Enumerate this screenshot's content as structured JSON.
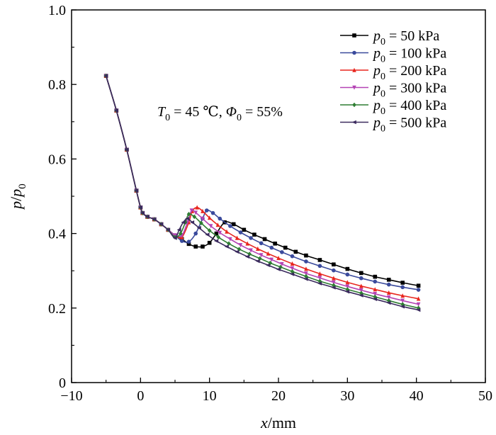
{
  "chart_data": {
    "type": "line",
    "xlabel_var": "x",
    "xlabel_unit": "/mm",
    "ylabel_num": "p",
    "ylabel_den": "p",
    "ylabel_den_sub": "0",
    "xlim": [
      -10,
      50
    ],
    "ylim": [
      0,
      1.0
    ],
    "x_ticks": [
      -10,
      0,
      10,
      20,
      30,
      40,
      50
    ],
    "x_tick_labels": [
      "−10",
      "0",
      "10",
      "20",
      "30",
      "40",
      "50"
    ],
    "y_ticks": [
      0,
      0.2,
      0.4,
      0.6,
      0.8,
      1.0
    ],
    "y_tick_labels": [
      "0",
      "0.2",
      "0.4",
      "0.6",
      "0.8",
      "1.0"
    ],
    "grid": false,
    "legend_position": "top-right",
    "annotation": {
      "T": "T",
      "T_sub": "0",
      "T_value": " = 45 ℃, ",
      "Phi": "Φ",
      "Phi_sub": "0",
      "Phi_value": " = 55%"
    },
    "series": [
      {
        "name": "p0 = 50 kPa",
        "legend_var": "p",
        "legend_sub": "0",
        "legend_value": " = 50 kPa",
        "color": "#000000",
        "marker": "square",
        "x": [
          -5,
          -3.5,
          -2,
          -0.6,
          0,
          0.3,
          1,
          2,
          3,
          4,
          5,
          6,
          7,
          8,
          9,
          10,
          11,
          12.2,
          13.5,
          15,
          16.5,
          18,
          19.5,
          21,
          22.5,
          24,
          26,
          28,
          30,
          32,
          34,
          36,
          38,
          40.3
        ],
        "y": [
          0.823,
          0.73,
          0.625,
          0.515,
          0.47,
          0.455,
          0.445,
          0.438,
          0.425,
          0.41,
          0.395,
          0.385,
          0.372,
          0.365,
          0.365,
          0.375,
          0.4,
          0.43,
          0.425,
          0.41,
          0.397,
          0.385,
          0.373,
          0.362,
          0.351,
          0.341,
          0.329,
          0.317,
          0.305,
          0.294,
          0.284,
          0.276,
          0.268,
          0.26
        ]
      },
      {
        "name": "p0 = 100 kPa",
        "legend_var": "p",
        "legend_sub": "0",
        "legend_value": " = 100 kPa",
        "color": "#3a4a9c",
        "marker": "circle",
        "x": [
          -5,
          -3.5,
          -2,
          -0.6,
          0,
          0.3,
          1,
          2,
          3,
          4,
          5,
          6,
          7,
          8,
          9,
          9.6,
          10.5,
          11.5,
          13,
          14.5,
          16,
          17.5,
          19,
          20.5,
          22,
          24,
          26,
          28,
          30,
          32,
          34,
          36,
          38,
          40.3
        ],
        "y": [
          0.823,
          0.73,
          0.625,
          0.515,
          0.47,
          0.455,
          0.445,
          0.438,
          0.425,
          0.41,
          0.395,
          0.38,
          0.378,
          0.4,
          0.44,
          0.462,
          0.455,
          0.44,
          0.42,
          0.403,
          0.388,
          0.374,
          0.362,
          0.35,
          0.339,
          0.325,
          0.313,
          0.301,
          0.29,
          0.28,
          0.271,
          0.263,
          0.256,
          0.249
        ]
      },
      {
        "name": "p0 = 200 kPa",
        "legend_var": "p",
        "legend_sub": "0",
        "legend_value": " = 200 kPa",
        "color": "#e8261e",
        "marker": "triangle-up",
        "x": [
          -5,
          -3.5,
          -2,
          -0.6,
          0,
          0.3,
          1,
          2,
          3,
          4,
          5,
          6,
          7,
          7.5,
          8.2,
          9,
          10,
          11.2,
          12.5,
          14,
          15.5,
          17,
          18.5,
          20,
          22,
          24,
          26,
          28,
          30,
          32,
          34,
          36,
          38,
          40.3
        ],
        "y": [
          0.823,
          0.73,
          0.625,
          0.515,
          0.47,
          0.455,
          0.445,
          0.438,
          0.425,
          0.41,
          0.395,
          0.39,
          0.43,
          0.46,
          0.47,
          0.46,
          0.442,
          0.423,
          0.405,
          0.388,
          0.373,
          0.359,
          0.346,
          0.334,
          0.319,
          0.305,
          0.292,
          0.28,
          0.269,
          0.259,
          0.25,
          0.241,
          0.233,
          0.225
        ]
      },
      {
        "name": "p0 = 300 kPa",
        "legend_var": "p",
        "legend_sub": "0",
        "legend_value": " = 300 kPa",
        "color": "#b443b4",
        "marker": "triangle-down",
        "x": [
          -5,
          -3.5,
          -2,
          -0.6,
          0,
          0.3,
          1,
          2,
          3,
          4,
          5,
          6,
          6.8,
          7.4,
          8,
          9,
          10.2,
          11.5,
          13,
          14.5,
          16,
          17.5,
          19,
          20.5,
          22,
          24,
          26,
          28,
          30,
          32,
          34,
          36,
          38,
          40.3
        ],
        "y": [
          0.823,
          0.73,
          0.625,
          0.515,
          0.47,
          0.455,
          0.445,
          0.438,
          0.425,
          0.41,
          0.395,
          0.395,
          0.43,
          0.462,
          0.456,
          0.44,
          0.42,
          0.402,
          0.385,
          0.369,
          0.355,
          0.342,
          0.33,
          0.318,
          0.307,
          0.293,
          0.281,
          0.269,
          0.258,
          0.248,
          0.238,
          0.229,
          0.22,
          0.21
        ]
      },
      {
        "name": "p0 = 400 kPa",
        "legend_var": "p",
        "legend_sub": "0",
        "legend_value": " = 400 kPa",
        "color": "#2e7d32",
        "marker": "diamond",
        "x": [
          -5,
          -3.5,
          -2,
          -0.6,
          0,
          0.3,
          1,
          2,
          3,
          4,
          5,
          5.8,
          6.5,
          7,
          7.8,
          8.8,
          10,
          11.3,
          12.8,
          14.3,
          15.8,
          17.3,
          18.8,
          20.3,
          22,
          24,
          26,
          28,
          30,
          32,
          34,
          36,
          38,
          40.3
        ],
        "y": [
          0.823,
          0.73,
          0.625,
          0.515,
          0.47,
          0.455,
          0.445,
          0.438,
          0.425,
          0.41,
          0.39,
          0.4,
          0.43,
          0.452,
          0.445,
          0.428,
          0.408,
          0.39,
          0.373,
          0.358,
          0.345,
          0.333,
          0.321,
          0.31,
          0.298,
          0.285,
          0.272,
          0.261,
          0.25,
          0.24,
          0.23,
          0.22,
          0.21,
          0.2
        ]
      },
      {
        "name": "p0 = 500 kPa",
        "legend_var": "p",
        "legend_sub": "0",
        "legend_value": " = 500 kPa",
        "color": "#3b2a5e",
        "marker": "triangle-left",
        "x": [
          -5,
          -3.5,
          -2,
          -0.6,
          0,
          0.3,
          1,
          2,
          3,
          4,
          5,
          5.6,
          6.2,
          6.8,
          7.5,
          8.5,
          9.7,
          11,
          12.5,
          14,
          15.5,
          17,
          18.5,
          20,
          22,
          24,
          26,
          28,
          30,
          32,
          34,
          36,
          38,
          40.3
        ],
        "y": [
          0.823,
          0.73,
          0.625,
          0.515,
          0.47,
          0.455,
          0.445,
          0.438,
          0.425,
          0.41,
          0.388,
          0.41,
          0.43,
          0.44,
          0.43,
          0.415,
          0.397,
          0.38,
          0.365,
          0.351,
          0.338,
          0.326,
          0.315,
          0.304,
          0.291,
          0.278,
          0.266,
          0.255,
          0.244,
          0.234,
          0.224,
          0.214,
          0.204,
          0.195
        ]
      }
    ]
  }
}
